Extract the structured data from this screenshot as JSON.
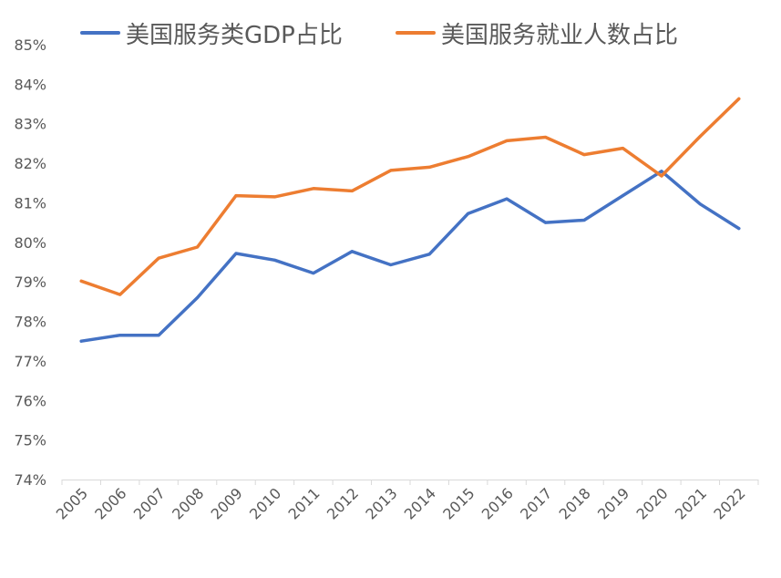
{
  "chart_data": {
    "type": "line",
    "categories": [
      "2005",
      "2006",
      "2007",
      "2008",
      "2009",
      "2010",
      "2011",
      "2012",
      "2013",
      "2014",
      "2015",
      "2016",
      "2017",
      "2018",
      "2019",
      "2020",
      "2021",
      "2022"
    ],
    "series": [
      {
        "name": "美国服务类GDP占比",
        "color": "#4472C4",
        "values": [
          77.5,
          77.65,
          77.65,
          78.6,
          79.72,
          79.55,
          79.22,
          79.77,
          79.43,
          79.7,
          80.73,
          81.1,
          80.5,
          80.56,
          81.18,
          81.8,
          80.97,
          80.35
        ]
      },
      {
        "name": "美国服务就业人数占比",
        "color": "#ED7D31",
        "values": [
          79.02,
          78.68,
          79.6,
          79.88,
          81.18,
          81.15,
          81.36,
          81.3,
          81.82,
          81.9,
          82.17,
          82.57,
          82.66,
          82.22,
          82.38,
          81.68,
          82.68,
          83.63
        ]
      }
    ],
    "y_ticks": [
      "74%",
      "75%",
      "76%",
      "77%",
      "78%",
      "79%",
      "80%",
      "81%",
      "82%",
      "83%",
      "84%",
      "85%"
    ],
    "ylim": [
      74,
      85
    ],
    "y_unit": "%",
    "legend_position": "top",
    "grid": false
  }
}
